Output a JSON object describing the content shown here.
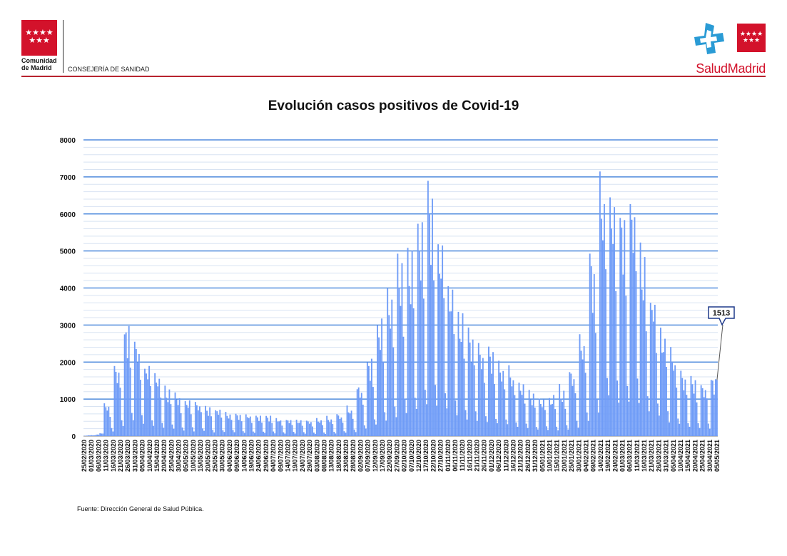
{
  "header": {
    "left_logo_name": "Comunidad\nde Madrid",
    "left_dept": "CONSEJERÍA DE SANIDAD",
    "right_logo_text": "SaludMadrid"
  },
  "source_note": "Fuente: Dirección General de Salud Pública.",
  "colors": {
    "bar": "#6f9cf7",
    "grid_major": "#2e75d6",
    "grid_minor": "#d8e3f2",
    "brand_red": "#d3122b"
  },
  "chart_data": {
    "type": "bar",
    "title": "Evolución casos positivos de Covid-19",
    "xlabel": "",
    "ylabel": "",
    "ylim": [
      0,
      8000
    ],
    "yticks": [
      0,
      1000,
      2000,
      3000,
      4000,
      5000,
      6000,
      7000,
      8000
    ],
    "grid": true,
    "date_range": [
      "2020-02-25",
      "2021-05-08"
    ],
    "xtick_labels": [
      "25/02/2020",
      "01/03/2020",
      "06/03/2020",
      "11/03/2020",
      "16/03/2020",
      "21/03/2020",
      "26/03/2020",
      "31/03/2020",
      "05/04/2020",
      "10/04/2020",
      "15/04/2020",
      "20/04/2020",
      "25/04/2020",
      "30/04/2020",
      "05/05/2020",
      "10/05/2020",
      "15/05/2020",
      "20/05/2020",
      "25/05/2020",
      "30/05/2020",
      "04/06/2020",
      "09/06/2020",
      "14/06/2020",
      "19/06/2020",
      "24/06/2020",
      "29/06/2020",
      "04/07/2020",
      "09/07/2020",
      "14/07/2020",
      "19/07/2020",
      "24/07/2020",
      "29/07/2020",
      "03/08/2020",
      "08/08/2020",
      "13/08/2020",
      "18/08/2020",
      "23/08/2020",
      "28/08/2020",
      "02/09/2020",
      "07/09/2020",
      "12/09/2020",
      "17/09/2020",
      "22/09/2020",
      "27/09/2020",
      "02/10/2020",
      "07/10/2020",
      "12/10/2020",
      "17/10/2020",
      "22/10/2020",
      "27/10/2020",
      "01/11/2020",
      "06/11/2020",
      "11/11/2020",
      "16/11/2020",
      "21/11/2020",
      "26/11/2020",
      "01/12/2020",
      "06/12/2020",
      "11/12/2020",
      "16/12/2020",
      "21/12/2020",
      "26/12/2020",
      "31/12/2020",
      "05/01/2021",
      "10/01/2021",
      "15/01/2021",
      "20/01/2021",
      "25/01/2021",
      "30/01/2021",
      "04/02/2021",
      "09/02/2021",
      "14/02/2021",
      "19/02/2021",
      "24/02/2021",
      "01/03/2021",
      "06/03/2021",
      "11/03/2021",
      "16/03/2021",
      "21/03/2021",
      "26/03/2021",
      "31/03/2021",
      "05/04/2021",
      "10/04/2021",
      "15/04/2021",
      "20/04/2021",
      "25/04/2021",
      "30/04/2021",
      "05/05/2021"
    ],
    "weekly_peaks": [
      30,
      100,
      900,
      2000,
      3000,
      2600,
      2000,
      1700,
      1300,
      1100,
      1000,
      950,
      800,
      750,
      700,
      650,
      620,
      600,
      550,
      500,
      480,
      450,
      420,
      450,
      500,
      600,
      800,
      1400,
      2100,
      3200,
      4000,
      4700,
      5200,
      6000,
      6400,
      5500,
      4200,
      3300,
      2900,
      2500,
      2300,
      2100,
      1800,
      1500,
      1250,
      1100,
      1100,
      1300,
      1800,
      2900,
      4900,
      7400,
      6500,
      6200,
      6800,
      5000,
      4000,
      2900,
      2200,
      1700,
      1600,
      1500,
      1600,
      1800,
      2100,
      2500,
      2800,
      2750,
      2700,
      2700,
      2600,
      2400,
      1960
    ],
    "annotation": {
      "label": "1513",
      "value": 1513
    }
  }
}
